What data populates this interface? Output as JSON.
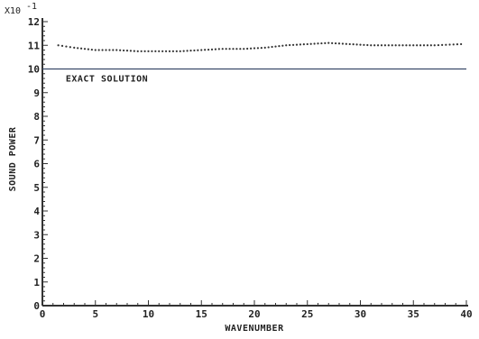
{
  "chart_data": {
    "type": "line",
    "xlabel": "WAVENUMBER",
    "ylabel": "SOUND POWER",
    "y_multiplier_label": "X10",
    "y_multiplier_exp": "-1",
    "xlim": [
      0,
      40
    ],
    "ylim": [
      0,
      12
    ],
    "x_ticks": [
      0,
      5,
      10,
      15,
      20,
      25,
      30,
      35,
      40
    ],
    "y_ticks": [
      0,
      1,
      2,
      3,
      4,
      5,
      6,
      7,
      8,
      9,
      10,
      11,
      12
    ],
    "x_tick_labels": [
      "0",
      "5",
      "10",
      "15",
      "20",
      "25",
      "30",
      "35",
      "40"
    ],
    "y_tick_labels": [
      "0",
      "1",
      "2",
      "3",
      "4",
      "5",
      "6",
      "7",
      "8",
      "9",
      "10",
      "11",
      "12"
    ],
    "annotation": "EXACT SOLUTION",
    "grid": false,
    "series": [
      {
        "style": "solid",
        "x": [
          0,
          40
        ],
        "y": [
          10.0,
          10.0
        ]
      },
      {
        "style": "dotted",
        "x": [
          1.5,
          3,
          5,
          7,
          9,
          11,
          13,
          15,
          17,
          19,
          21,
          23,
          25,
          27,
          29,
          31,
          33,
          35,
          37,
          39.5
        ],
        "y": [
          11.0,
          10.9,
          10.8,
          10.8,
          10.75,
          10.75,
          10.75,
          10.8,
          10.85,
          10.85,
          10.9,
          11.0,
          11.05,
          11.1,
          11.05,
          11.0,
          11.0,
          11.0,
          11.0,
          11.05
        ]
      }
    ]
  }
}
